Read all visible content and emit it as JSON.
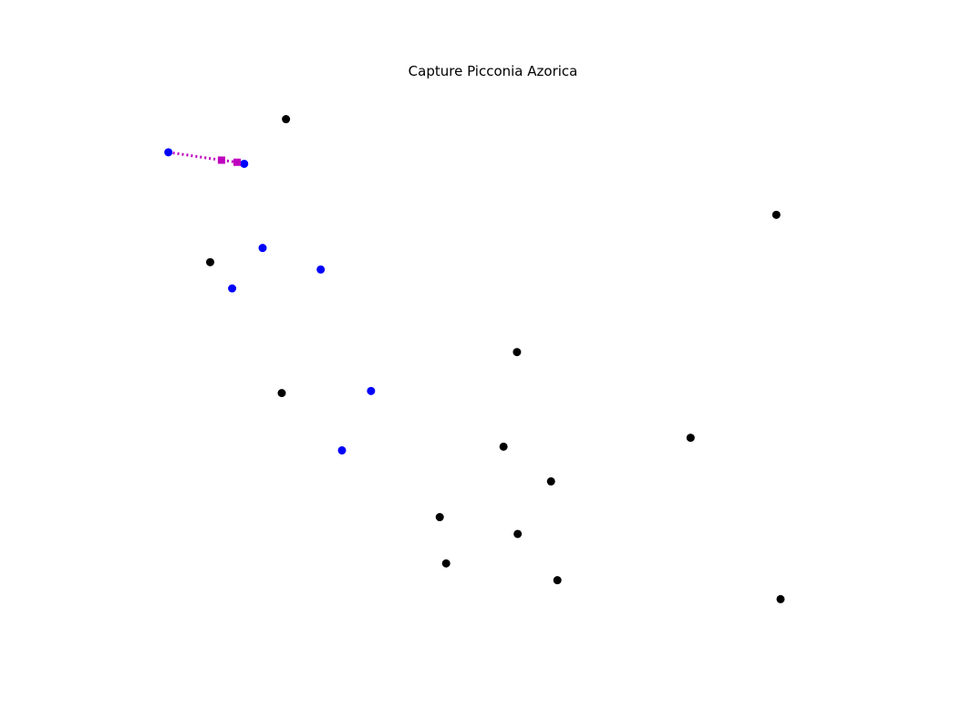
{
  "chart_data": {
    "type": "scatter",
    "title": "Capture Picconia Azorica",
    "xlabel": "",
    "ylabel": "",
    "axes_visible": false,
    "grid": false,
    "xlim": [
      0,
      100
    ],
    "ylim": [
      0,
      100
    ],
    "series": [
      {
        "role": "reference",
        "color": "#000000",
        "marker": "circle",
        "points": [
          {
            "x": 20.8,
            "y": 94.7
          },
          {
            "x": 10.1,
            "y": 67.5
          },
          {
            "x": 90.0,
            "y": 76.5
          },
          {
            "x": 53.4,
            "y": 50.4
          },
          {
            "x": 20.2,
            "y": 42.6
          },
          {
            "x": 51.5,
            "y": 32.4
          },
          {
            "x": 77.9,
            "y": 34.1
          },
          {
            "x": 58.2,
            "y": 25.8
          },
          {
            "x": 42.5,
            "y": 19.0
          },
          {
            "x": 53.5,
            "y": 15.8
          },
          {
            "x": 43.4,
            "y": 10.2
          },
          {
            "x": 59.1,
            "y": 7.0
          },
          {
            "x": 90.6,
            "y": 3.4
          }
        ]
      },
      {
        "role": "highlight",
        "color": "#0000ff",
        "marker": "circle",
        "points": [
          {
            "x": 4.2,
            "y": 88.4
          },
          {
            "x": 14.9,
            "y": 86.2
          },
          {
            "x": 17.5,
            "y": 70.2
          },
          {
            "x": 25.7,
            "y": 66.1
          },
          {
            "x": 13.2,
            "y": 62.5
          },
          {
            "x": 32.8,
            "y": 43.0
          },
          {
            "x": 28.7,
            "y": 31.7
          }
        ]
      },
      {
        "role": "path",
        "color": "#bf00bf",
        "marker": "square",
        "line_style": "dotted",
        "points": [
          {
            "x": 4.2,
            "y": 88.4
          },
          {
            "x": 11.7,
            "y": 86.9
          },
          {
            "x": 13.9,
            "y": 86.5
          },
          {
            "x": 14.9,
            "y": 86.2
          }
        ],
        "square_markers": [
          1,
          2
        ]
      }
    ]
  }
}
